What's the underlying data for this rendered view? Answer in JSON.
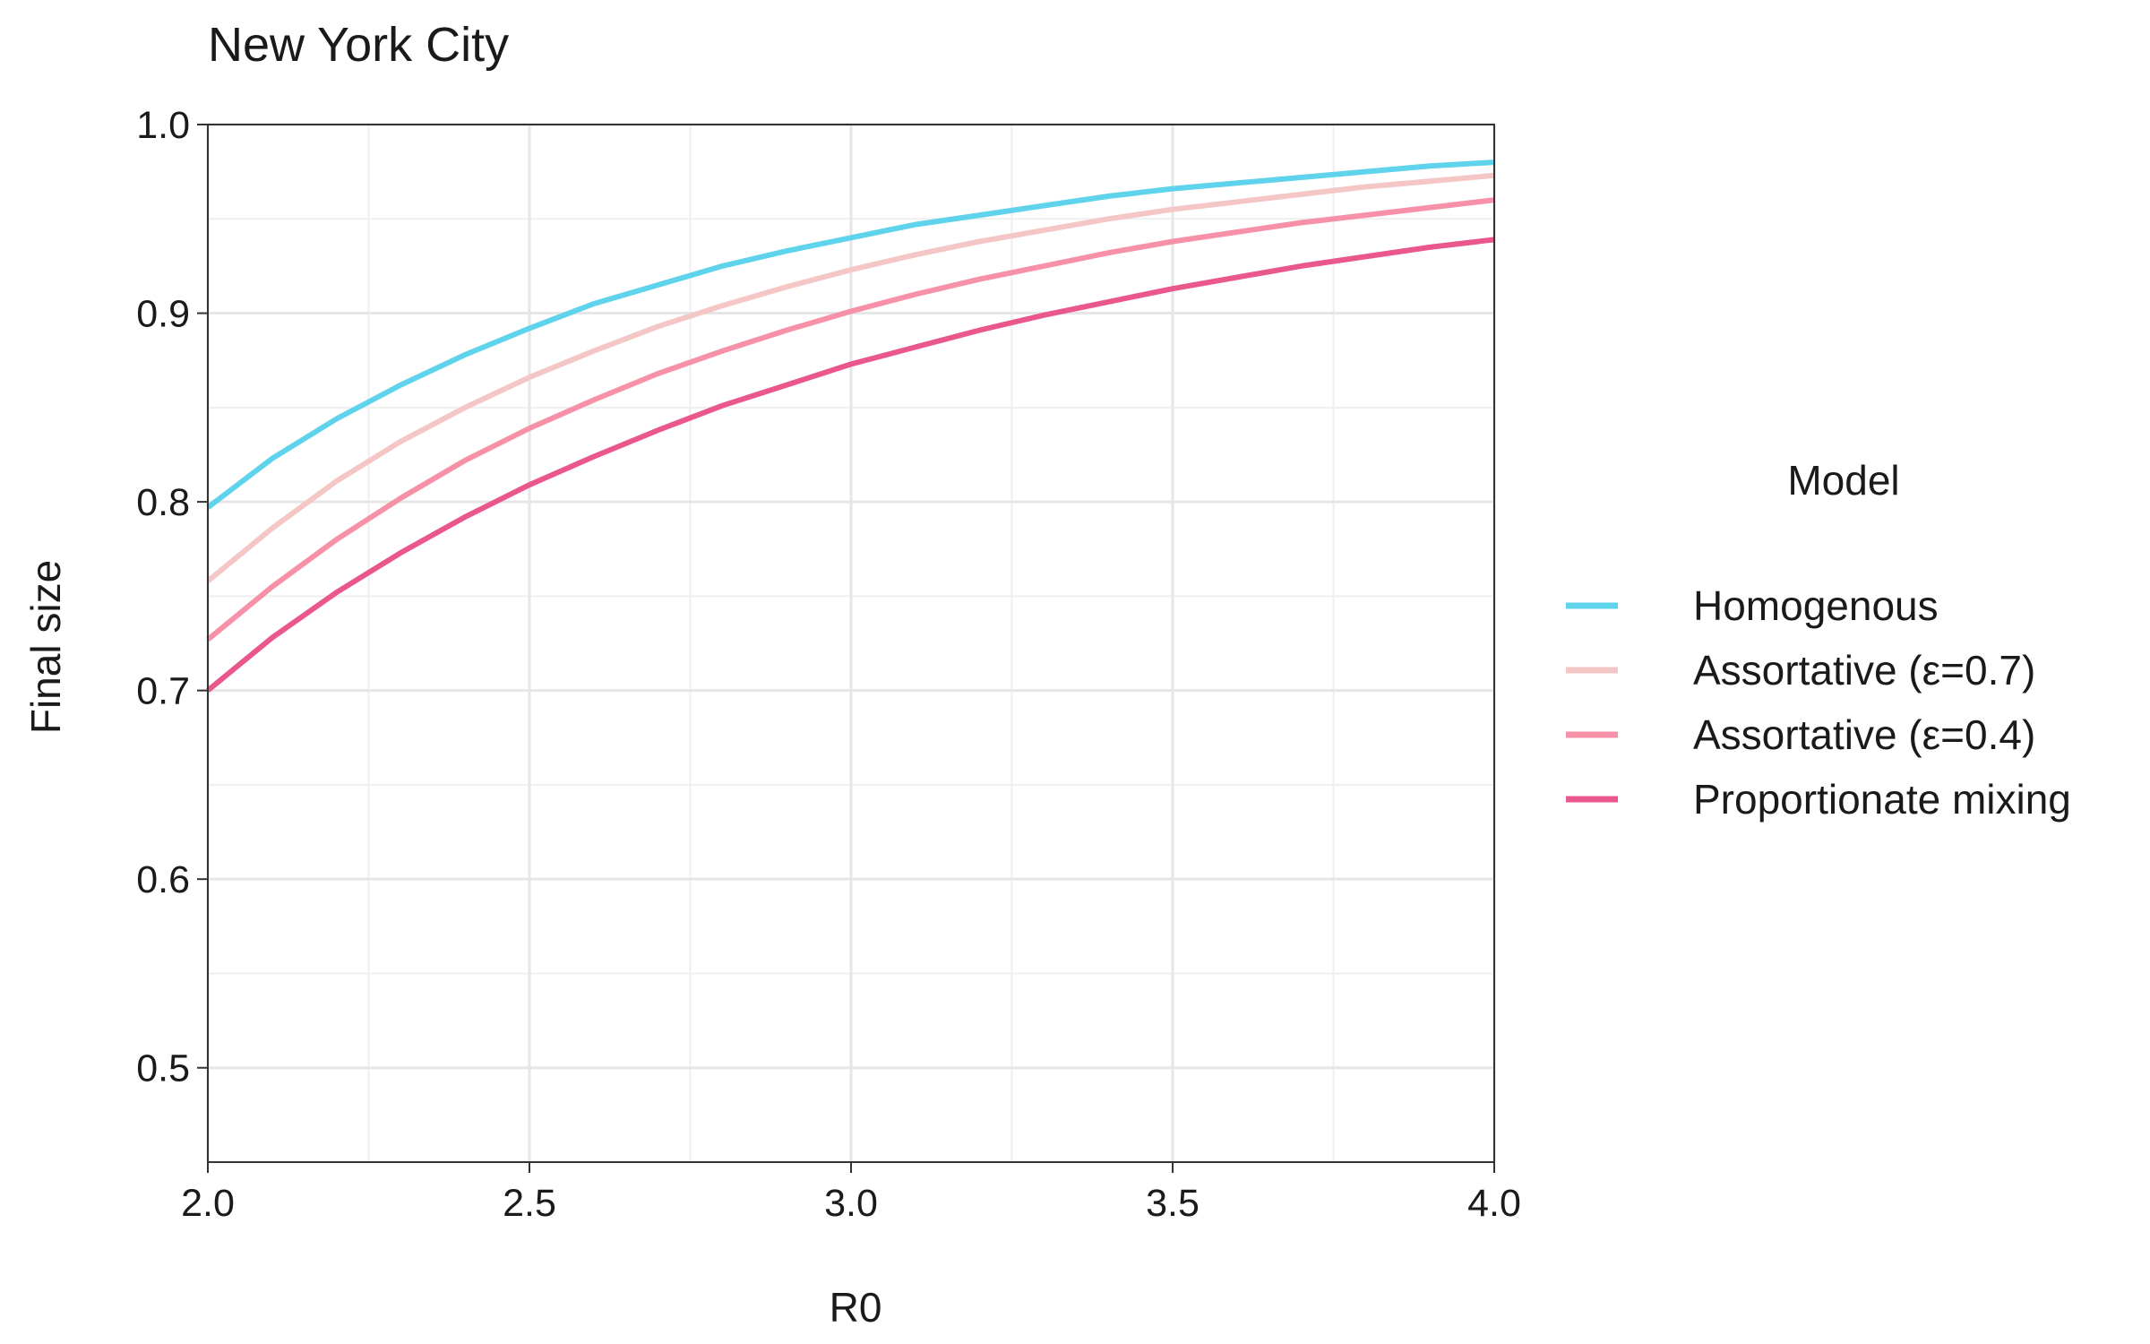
{
  "chart_data": {
    "type": "line",
    "title": "New York City",
    "xlabel": "R0",
    "ylabel": "Final size",
    "xlim": [
      2.0,
      4.0
    ],
    "ylim": [
      0.45,
      1.0
    ],
    "x_ticks": [
      "2.0",
      "2.5",
      "3.0",
      "3.5",
      "4.0"
    ],
    "y_ticks": [
      "0.5",
      "0.6",
      "0.7",
      "0.8",
      "0.9",
      "1.0"
    ],
    "grid": true,
    "legend_title": "Model",
    "legend_position": "right",
    "x": [
      2.0,
      2.1,
      2.2,
      2.3,
      2.4,
      2.5,
      2.6,
      2.7,
      2.8,
      2.9,
      3.0,
      3.1,
      3.2,
      3.3,
      3.4,
      3.5,
      3.6,
      3.7,
      3.8,
      3.9,
      4.0
    ],
    "series": [
      {
        "name": "Homogenous",
        "color": "#5fd3ec",
        "values": [
          0.797,
          0.823,
          0.844,
          0.862,
          0.878,
          0.892,
          0.905,
          0.915,
          0.925,
          0.933,
          0.94,
          0.947,
          0.952,
          0.957,
          0.962,
          0.966,
          0.969,
          0.972,
          0.975,
          0.978,
          0.98
        ]
      },
      {
        "name": "Assortative (ε=0.7)",
        "color": "#f5c6c6",
        "values": [
          0.758,
          0.786,
          0.811,
          0.832,
          0.85,
          0.866,
          0.88,
          0.893,
          0.904,
          0.914,
          0.923,
          0.931,
          0.938,
          0.944,
          0.95,
          0.955,
          0.959,
          0.963,
          0.967,
          0.97,
          0.973
        ]
      },
      {
        "name": "Assortative (ε=0.4)",
        "color": "#f691a8",
        "values": [
          0.727,
          0.755,
          0.78,
          0.802,
          0.822,
          0.839,
          0.854,
          0.868,
          0.88,
          0.891,
          0.901,
          0.91,
          0.918,
          0.925,
          0.932,
          0.938,
          0.943,
          0.948,
          0.952,
          0.956,
          0.96
        ]
      },
      {
        "name": "Proportionate mixing",
        "color": "#e9578c",
        "values": [
          0.7,
          0.728,
          0.752,
          0.773,
          0.792,
          0.809,
          0.824,
          0.838,
          0.851,
          0.862,
          0.873,
          0.882,
          0.891,
          0.899,
          0.906,
          0.913,
          0.919,
          0.925,
          0.93,
          0.935,
          0.939
        ]
      }
    ]
  }
}
